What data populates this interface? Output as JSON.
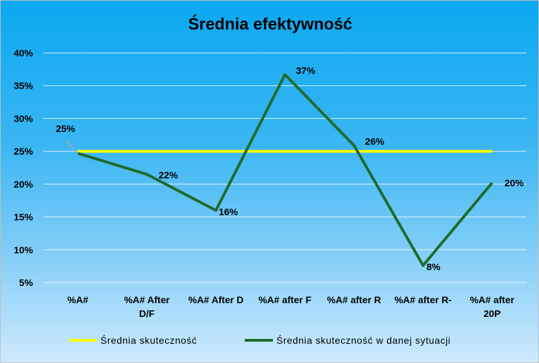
{
  "chart_data": {
    "type": "line",
    "title": "Średnia efektywność",
    "categories": [
      "%A#",
      "%A# After D/F",
      "%A# After D",
      "%A# after F",
      "%A# after R",
      "%A# after R-",
      "%A# after 20P"
    ],
    "category_lines": [
      [
        "%A#"
      ],
      [
        "%A# After",
        "D/F"
      ],
      [
        "%A# After D"
      ],
      [
        "%A# after F"
      ],
      [
        "%A# after R"
      ],
      [
        "%A# after R-"
      ],
      [
        "%A# after",
        "20P"
      ]
    ],
    "ylim": [
      5,
      40
    ],
    "yticks": [
      5,
      10,
      15,
      20,
      25,
      30,
      35,
      40
    ],
    "ytick_labels": [
      "5%",
      "10%",
      "15%",
      "20%",
      "25%",
      "30%",
      "35%",
      "40%"
    ],
    "grid": true,
    "legend_position": "bottom",
    "series": [
      {
        "name": "Średnia skuteczność",
        "values": [
          25,
          25,
          25,
          25,
          25,
          25,
          25
        ],
        "color": "#ffff00"
      },
      {
        "name": "Średnia skuteczność w danej sytuacji",
        "values": [
          24.7,
          21.5,
          16,
          36.7,
          25.9,
          7.6,
          20.2
        ],
        "color": "#1e6b2a",
        "labels": [
          "25%",
          "22%",
          "16%",
          "37%",
          "26%",
          "8%",
          "20%"
        ]
      }
    ]
  }
}
